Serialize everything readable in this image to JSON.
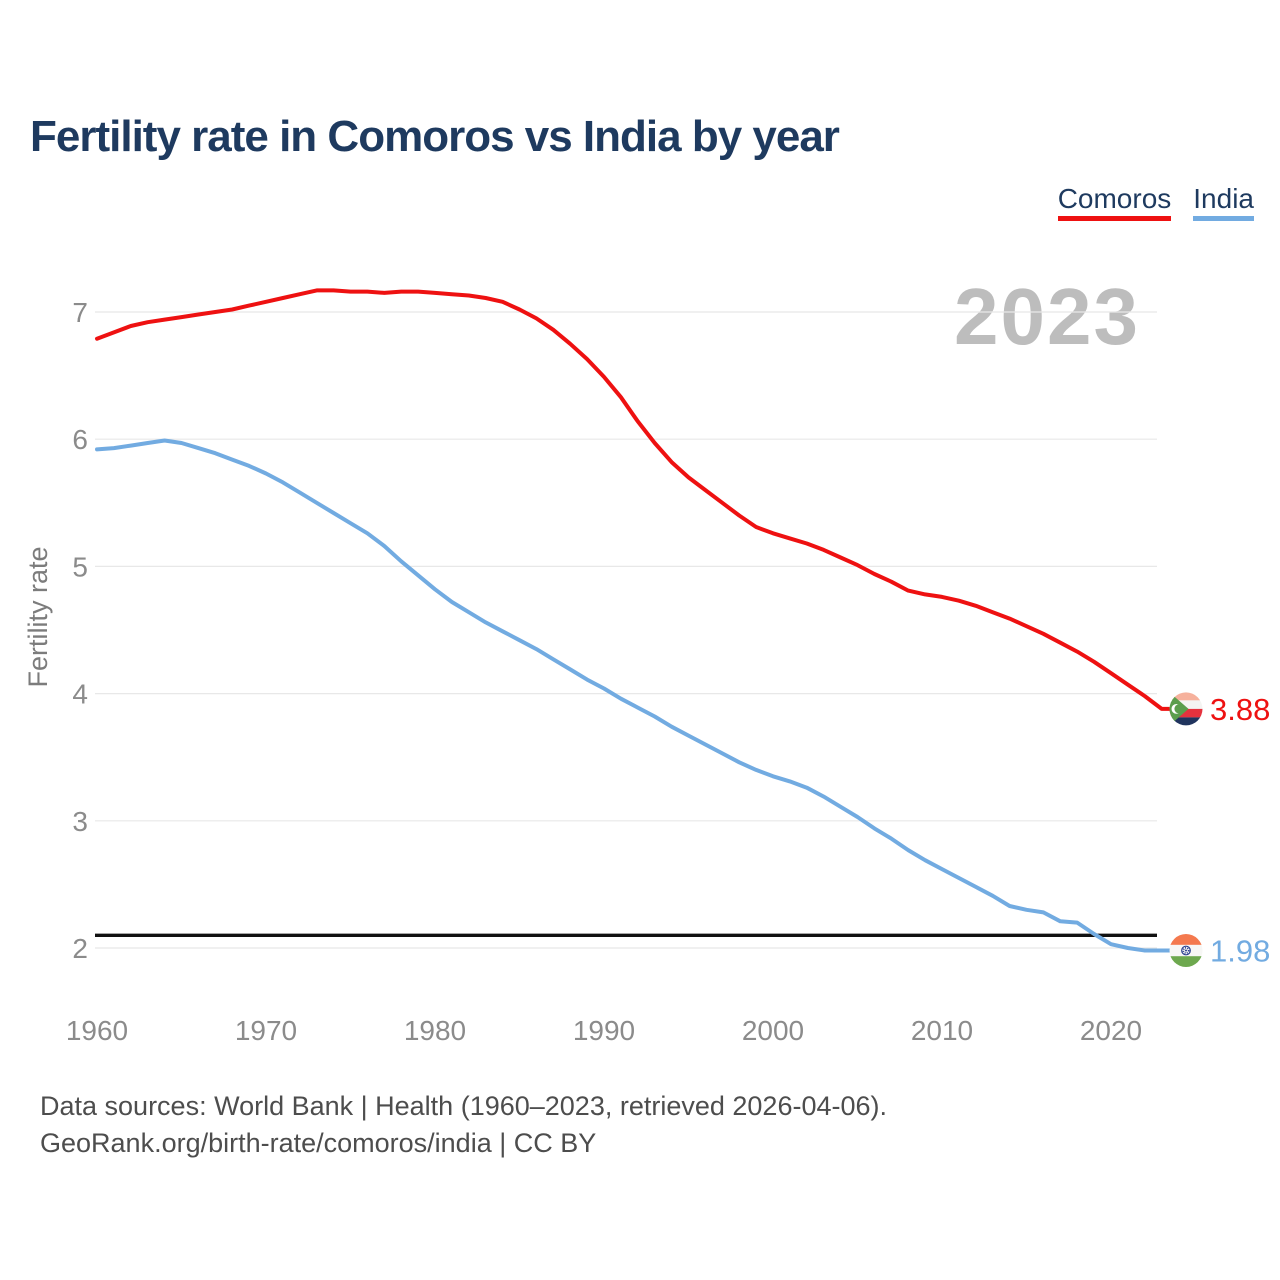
{
  "header": {
    "title": "Fertility rate in Comoros vs India by year"
  },
  "legend": [
    {
      "label": "Comoros",
      "color": "#ee1111"
    },
    {
      "label": "India",
      "color": "#72abe1"
    }
  ],
  "watermark": "2023",
  "colors": {
    "title_navy": "#1e3a5f",
    "comoros_red": "#ee1111",
    "india_blue": "#72abe1",
    "gridline": "#e8e8e8",
    "tick_gray": "#8b8b8b",
    "watermark_gray": "#bdbdbd",
    "footer_gray": "#4d4d4d",
    "reference_black": "#111111"
  },
  "y_axis": {
    "label": "Fertility rate",
    "ticks": [
      7,
      6,
      5,
      4,
      3,
      2
    ]
  },
  "x_axis": {
    "ticks": [
      1960,
      1970,
      1980,
      1990,
      2000,
      2010,
      2020
    ]
  },
  "end_labels": [
    {
      "series": "Comoros",
      "value": "3.88",
      "flag": "comoros-flag"
    },
    {
      "series": "India",
      "value": "1.98",
      "flag": "india-flag"
    }
  ],
  "footer": {
    "line1": "Data sources: World Bank | Health (1960–2023, retrieved 2026-04-06).",
    "line2": "GeoRank.org/birth-rate/comoros/india | CC BY"
  },
  "chart_data": {
    "type": "line",
    "title": "Fertility rate in Comoros vs India by year",
    "xlabel": "",
    "ylabel": "Fertility rate",
    "x_range": [
      1960,
      2023
    ],
    "ylim": [
      1.5,
      7.5
    ],
    "grid": "horizontal",
    "legend_position": "top-right",
    "reference_line": {
      "value": 2.1,
      "color": "#111111",
      "meaning": "replacement-level fertility"
    },
    "x": [
      1960,
      1961,
      1962,
      1963,
      1964,
      1965,
      1966,
      1967,
      1968,
      1969,
      1970,
      1971,
      1972,
      1973,
      1974,
      1975,
      1976,
      1977,
      1978,
      1979,
      1980,
      1981,
      1982,
      1983,
      1984,
      1985,
      1986,
      1987,
      1988,
      1989,
      1990,
      1991,
      1992,
      1993,
      1994,
      1995,
      1996,
      1997,
      1998,
      1999,
      2000,
      2001,
      2002,
      2003,
      2004,
      2005,
      2006,
      2007,
      2008,
      2009,
      2010,
      2011,
      2012,
      2013,
      2014,
      2015,
      2016,
      2017,
      2018,
      2019,
      2020,
      2021,
      2022,
      2023
    ],
    "series": [
      {
        "name": "Comoros",
        "color": "#ee1111",
        "end_value": 3.88,
        "values": [
          6.79,
          6.84,
          6.89,
          6.92,
          6.94,
          6.96,
          6.98,
          7.0,
          7.02,
          7.05,
          7.08,
          7.11,
          7.14,
          7.17,
          7.17,
          7.16,
          7.16,
          7.15,
          7.16,
          7.16,
          7.15,
          7.14,
          7.13,
          7.11,
          7.08,
          7.02,
          6.95,
          6.86,
          6.75,
          6.63,
          6.49,
          6.33,
          6.14,
          5.97,
          5.82,
          5.7,
          5.6,
          5.5,
          5.4,
          5.31,
          5.26,
          5.22,
          5.18,
          5.13,
          5.07,
          5.01,
          4.94,
          4.88,
          4.81,
          4.78,
          4.76,
          4.73,
          4.69,
          4.64,
          4.59,
          4.53,
          4.47,
          4.4,
          4.33,
          4.25,
          4.16,
          4.07,
          3.98,
          3.88
        ]
      },
      {
        "name": "India",
        "color": "#72abe1",
        "end_value": 1.98,
        "values": [
          5.92,
          5.93,
          5.95,
          5.97,
          5.99,
          5.97,
          5.93,
          5.89,
          5.84,
          5.79,
          5.73,
          5.66,
          5.58,
          5.5,
          5.42,
          5.34,
          5.26,
          5.16,
          5.04,
          4.93,
          4.82,
          4.72,
          4.64,
          4.56,
          4.49,
          4.42,
          4.35,
          4.27,
          4.19,
          4.11,
          4.04,
          3.96,
          3.89,
          3.82,
          3.74,
          3.67,
          3.6,
          3.53,
          3.46,
          3.4,
          3.35,
          3.31,
          3.26,
          3.19,
          3.11,
          3.03,
          2.94,
          2.86,
          2.77,
          2.69,
          2.62,
          2.55,
          2.48,
          2.41,
          2.33,
          2.3,
          2.28,
          2.21,
          2.2,
          2.11,
          2.03,
          2.0,
          1.98,
          1.98
        ]
      }
    ]
  }
}
